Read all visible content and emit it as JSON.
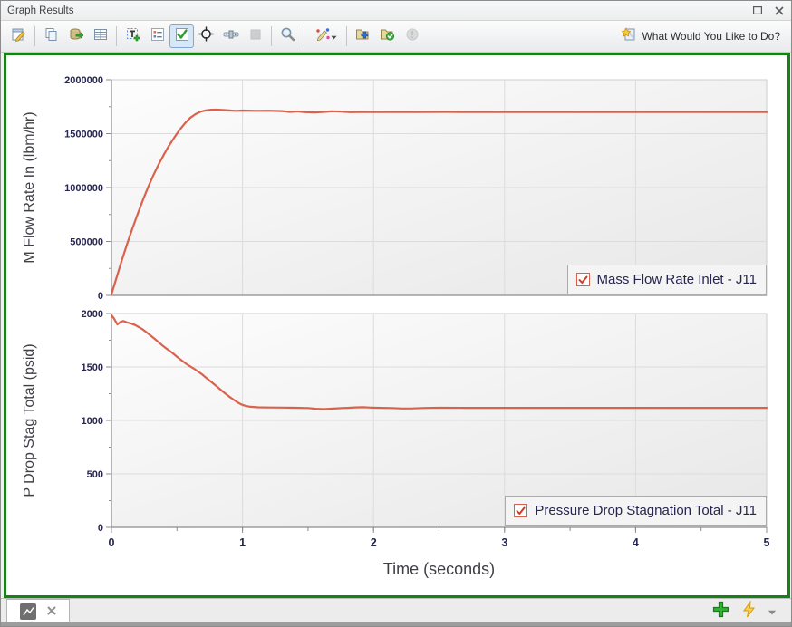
{
  "window": {
    "title": "Graph Results"
  },
  "toolbar": {
    "help_label": "What Would You Like to Do?",
    "icons": [
      "edit-graph",
      "copy-graph",
      "export-data",
      "show-data",
      "add-text",
      "legend-options",
      "show-checkboxes",
      "crosshair",
      "time-slider",
      "stop",
      "zoom",
      "format-series",
      "add-graph-to-list",
      "update-graph-in-list",
      "warnings",
      "help-wizard"
    ]
  },
  "colors": {
    "series": "#d9624c",
    "panel_border_green": "#178017",
    "tick_text": "#26264f",
    "grid": "#dcdcdc",
    "axis": "#8c8c8c"
  },
  "tabbar": {
    "icons": [
      "graph-tab-icon",
      "close-tab-icon",
      "add-graph-icon",
      "quick-graph-icon",
      "chevron-down-icon"
    ]
  },
  "chart_data": [
    {
      "type": "line",
      "ylabel": "M Flow Rate In (lbm/hr)",
      "xlim": [
        0,
        5
      ],
      "ylim": [
        0,
        2000000
      ],
      "grid": true,
      "yticks": {
        "major": [
          {
            "v": 0,
            "label": "0"
          },
          {
            "v": 500000,
            "label": "500000"
          },
          {
            "v": 1000000,
            "label": "1000000"
          },
          {
            "v": 1500000,
            "label": "1500000"
          },
          {
            "v": 2000000,
            "label": "2000000"
          }
        ],
        "minor_step": 250000
      },
      "xticks": {
        "major": [
          0,
          1,
          2,
          3,
          4,
          5
        ],
        "labels": null,
        "minor_step": 0.5
      },
      "legend": {
        "label": "Mass Flow Rate Inlet - J11",
        "checked": true,
        "position": "bottom-right"
      },
      "series": [
        {
          "name": "Mass Flow Rate Inlet - J11",
          "color": "#d9624c",
          "points": [
            [
              0,
              10000
            ],
            [
              0.04,
              170000
            ],
            [
              0.08,
              330000
            ],
            [
              0.12,
              480000
            ],
            [
              0.16,
              620000
            ],
            [
              0.2,
              755000
            ],
            [
              0.24,
              885000
            ],
            [
              0.28,
              1005000
            ],
            [
              0.32,
              1115000
            ],
            [
              0.36,
              1215000
            ],
            [
              0.4,
              1305000
            ],
            [
              0.44,
              1390000
            ],
            [
              0.48,
              1465000
            ],
            [
              0.52,
              1535000
            ],
            [
              0.56,
              1595000
            ],
            [
              0.6,
              1645000
            ],
            [
              0.64,
              1680000
            ],
            [
              0.68,
              1703000
            ],
            [
              0.72,
              1716000
            ],
            [
              0.76,
              1722000
            ],
            [
              0.8,
              1723000
            ],
            [
              0.85,
              1719000
            ],
            [
              0.9,
              1715000
            ],
            [
              0.95,
              1712000
            ],
            [
              1.0,
              1714000
            ],
            [
              1.1,
              1712000
            ],
            [
              1.2,
              1713000
            ],
            [
              1.3,
              1709000
            ],
            [
              1.36,
              1702000
            ],
            [
              1.42,
              1706000
            ],
            [
              1.48,
              1699000
            ],
            [
              1.55,
              1697000
            ],
            [
              1.62,
              1702000
            ],
            [
              1.68,
              1707000
            ],
            [
              1.75,
              1705000
            ],
            [
              1.82,
              1699000
            ],
            [
              1.9,
              1701000
            ],
            [
              2.0,
              1700000
            ],
            [
              2.3,
              1700000
            ],
            [
              2.55,
              1702000
            ],
            [
              2.7,
              1700000
            ],
            [
              3.0,
              1700000
            ],
            [
              3.5,
              1700000
            ],
            [
              4.0,
              1700000
            ],
            [
              4.5,
              1700000
            ],
            [
              5.0,
              1700000
            ]
          ]
        }
      ]
    },
    {
      "type": "line",
      "ylabel": "P Drop Stag Total (psid)",
      "xlabel": "Time (seconds)",
      "xlim": [
        0,
        5
      ],
      "ylim": [
        0,
        2000
      ],
      "grid": true,
      "yticks": {
        "major": [
          {
            "v": 0,
            "label": "0"
          },
          {
            "v": 500,
            "label": "500"
          },
          {
            "v": 1000,
            "label": "1000"
          },
          {
            "v": 1500,
            "label": "1500"
          },
          {
            "v": 2000,
            "label": "2000"
          }
        ],
        "minor_step": 250
      },
      "xticks": {
        "major": [
          0,
          1,
          2,
          3,
          4,
          5
        ],
        "labels": [
          "0",
          "1",
          "2",
          "3",
          "4",
          "5"
        ],
        "minor_step": 0.5
      },
      "legend": {
        "label": "Pressure Drop Stagnation Total - J11",
        "checked": true,
        "position": "bottom-right"
      },
      "series": [
        {
          "name": "Pressure Drop Stagnation Total - J11",
          "color": "#d9624c",
          "points": [
            [
              0,
              1985
            ],
            [
              0.02,
              1952
            ],
            [
              0.045,
              1898
            ],
            [
              0.07,
              1922
            ],
            [
              0.09,
              1930
            ],
            [
              0.12,
              1916
            ],
            [
              0.15,
              1906
            ],
            [
              0.18,
              1892
            ],
            [
              0.21,
              1872
            ],
            [
              0.24,
              1850
            ],
            [
              0.27,
              1822
            ],
            [
              0.3,
              1792
            ],
            [
              0.33,
              1763
            ],
            [
              0.36,
              1731
            ],
            [
              0.39,
              1700
            ],
            [
              0.42,
              1672
            ],
            [
              0.45,
              1645
            ],
            [
              0.48,
              1616
            ],
            [
              0.51,
              1586
            ],
            [
              0.54,
              1557
            ],
            [
              0.57,
              1530
            ],
            [
              0.6,
              1506
            ],
            [
              0.63,
              1484
            ],
            [
              0.66,
              1458
            ],
            [
              0.69,
              1432
            ],
            [
              0.72,
              1402
            ],
            [
              0.75,
              1372
            ],
            [
              0.78,
              1342
            ],
            [
              0.81,
              1312
            ],
            [
              0.84,
              1280
            ],
            [
              0.87,
              1250
            ],
            [
              0.9,
              1222
            ],
            [
              0.93,
              1196
            ],
            [
              0.96,
              1170
            ],
            [
              0.99,
              1150
            ],
            [
              1.02,
              1137
            ],
            [
              1.06,
              1128
            ],
            [
              1.12,
              1123
            ],
            [
              1.2,
              1121
            ],
            [
              1.3,
              1120
            ],
            [
              1.4,
              1119
            ],
            [
              1.5,
              1116
            ],
            [
              1.56,
              1109
            ],
            [
              1.62,
              1106
            ],
            [
              1.68,
              1110
            ],
            [
              1.74,
              1114
            ],
            [
              1.8,
              1118
            ],
            [
              1.86,
              1122
            ],
            [
              1.92,
              1124
            ],
            [
              1.98,
              1120
            ],
            [
              2.06,
              1118
            ],
            [
              2.14,
              1116
            ],
            [
              2.22,
              1112
            ],
            [
              2.3,
              1113
            ],
            [
              2.4,
              1117
            ],
            [
              2.5,
              1119
            ],
            [
              2.7,
              1118
            ],
            [
              3.0,
              1118
            ],
            [
              3.5,
              1118
            ],
            [
              4.0,
              1118
            ],
            [
              4.5,
              1118
            ],
            [
              5.0,
              1118
            ]
          ]
        }
      ]
    }
  ]
}
